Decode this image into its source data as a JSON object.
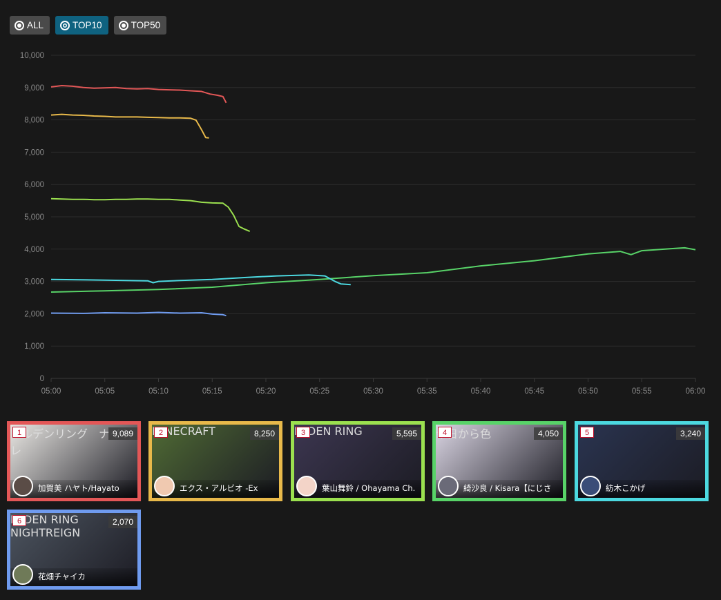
{
  "filters": [
    {
      "label": "ALL",
      "active": false
    },
    {
      "label": "TOP10",
      "active": true
    },
    {
      "label": "TOP50",
      "active": false
    }
  ],
  "chart_data": {
    "type": "line",
    "title": "",
    "xlabel": "",
    "ylabel": "",
    "ylim": [
      0,
      10000
    ],
    "yticks": [
      0,
      1000,
      2000,
      3000,
      4000,
      5000,
      6000,
      7000,
      8000,
      9000,
      10000
    ],
    "xticks": [
      "05:00",
      "05:05",
      "05:10",
      "05:15",
      "05:20",
      "05:25",
      "05:30",
      "05:35",
      "05:40",
      "05:45",
      "05:50",
      "05:55",
      "06:00"
    ],
    "xlim_minutes": [
      0,
      60
    ],
    "grid": true,
    "series": [
      {
        "color": "#e35757",
        "points": [
          [
            0,
            9020
          ],
          [
            1,
            9060
          ],
          [
            2,
            9040
          ],
          [
            3,
            9000
          ],
          [
            4,
            8980
          ],
          [
            5,
            8990
          ],
          [
            6,
            9000
          ],
          [
            7,
            8970
          ],
          [
            8,
            8960
          ],
          [
            9,
            8970
          ],
          [
            10,
            8940
          ],
          [
            11,
            8930
          ],
          [
            12,
            8920
          ],
          [
            13,
            8900
          ],
          [
            14,
            8880
          ],
          [
            14.8,
            8800
          ],
          [
            15.5,
            8760
          ],
          [
            16,
            8720
          ],
          [
            16.3,
            8530
          ]
        ]
      },
      {
        "color": "#e8b94a",
        "points": [
          [
            0,
            8150
          ],
          [
            1,
            8170
          ],
          [
            2,
            8150
          ],
          [
            3,
            8140
          ],
          [
            4,
            8120
          ],
          [
            5,
            8110
          ],
          [
            6,
            8090
          ],
          [
            7,
            8090
          ],
          [
            8,
            8090
          ],
          [
            9,
            8080
          ],
          [
            10,
            8070
          ],
          [
            11,
            8060
          ],
          [
            12,
            8060
          ],
          [
            13,
            8050
          ],
          [
            13.5,
            7990
          ],
          [
            14,
            7700
          ],
          [
            14.4,
            7450
          ],
          [
            14.7,
            7440
          ]
        ]
      },
      {
        "color": "#9be04f",
        "points": [
          [
            0,
            5560
          ],
          [
            1,
            5550
          ],
          [
            2,
            5540
          ],
          [
            3,
            5540
          ],
          [
            4,
            5530
          ],
          [
            5,
            5530
          ],
          [
            6,
            5540
          ],
          [
            7,
            5540
          ],
          [
            8,
            5550
          ],
          [
            9,
            5550
          ],
          [
            10,
            5540
          ],
          [
            11,
            5540
          ],
          [
            12,
            5520
          ],
          [
            13,
            5500
          ],
          [
            14,
            5450
          ],
          [
            15,
            5430
          ],
          [
            16,
            5420
          ],
          [
            16.5,
            5300
          ],
          [
            17,
            5050
          ],
          [
            17.5,
            4700
          ],
          [
            18,
            4620
          ],
          [
            18.5,
            4550
          ]
        ]
      },
      {
        "color": "#58d368",
        "points": [
          [
            0,
            2670
          ],
          [
            5,
            2710
          ],
          [
            10,
            2750
          ],
          [
            15,
            2820
          ],
          [
            20,
            2960
          ],
          [
            25,
            3060
          ],
          [
            30,
            3180
          ],
          [
            35,
            3270
          ],
          [
            40,
            3480
          ],
          [
            45,
            3640
          ],
          [
            50,
            3850
          ],
          [
            53,
            3930
          ],
          [
            54,
            3830
          ],
          [
            55,
            3950
          ],
          [
            58,
            4020
          ],
          [
            59,
            4040
          ],
          [
            60,
            3980
          ]
        ]
      },
      {
        "color": "#4cd9e0",
        "points": [
          [
            0,
            3060
          ],
          [
            5,
            3040
          ],
          [
            9,
            3020
          ],
          [
            9.5,
            2960
          ],
          [
            10,
            3000
          ],
          [
            12,
            3030
          ],
          [
            15,
            3060
          ],
          [
            18,
            3120
          ],
          [
            21,
            3170
          ],
          [
            24,
            3200
          ],
          [
            25.5,
            3170
          ],
          [
            26.5,
            2990
          ],
          [
            27,
            2920
          ],
          [
            27.9,
            2900
          ]
        ]
      },
      {
        "color": "#6f9bef",
        "points": [
          [
            0,
            2020
          ],
          [
            3,
            2010
          ],
          [
            5,
            2030
          ],
          [
            8,
            2020
          ],
          [
            10,
            2040
          ],
          [
            12,
            2020
          ],
          [
            14,
            2030
          ],
          [
            15,
            1990
          ],
          [
            16,
            1970
          ],
          [
            16.3,
            1940
          ]
        ]
      }
    ]
  },
  "cards": [
    {
      "rank": "1",
      "viewers": "9,089",
      "name": "加賀美 ハヤト/Hayato",
      "title_text": "エルデンリング　ナイトレ",
      "border": "#e35757",
      "thumb": "#e8e6e2",
      "avatar": "#5a4c46"
    },
    {
      "rank": "2",
      "viewers": "8,250",
      "name": "エクス・アルビオ -Ex",
      "title_text": "MINECRAFT",
      "border": "#e8b94a",
      "thumb": "#4f6a34",
      "avatar": "#f0c9b0"
    },
    {
      "rank": "3",
      "viewers": "5,595",
      "name": "葉山舞鈴 / Ohayama Ch.",
      "title_text": "ELDEN RING",
      "border": "#9be04f",
      "thumb": "#3c3650",
      "avatar": "#f3d4c8"
    },
    {
      "rank": "4",
      "viewers": "4,050",
      "name": "綺沙良 / Kisara【にじさ",
      "title_text": "今日から色",
      "border": "#58d368",
      "thumb": "#d9d4e2",
      "avatar": "#6a6a78"
    },
    {
      "rank": "5",
      "viewers": "3,240",
      "name": "紡木こかげ",
      "title_text": "",
      "border": "#4cd9e0",
      "thumb": "#2a3450",
      "avatar": "#3a4d78"
    },
    {
      "rank": "6",
      "viewers": "2,070",
      "name": "花畑チャイカ",
      "title_text": "ELDEN RING NIGHTREIGN",
      "border": "#6f9bef",
      "thumb": "#4d5560",
      "avatar": "#6f7a58"
    }
  ]
}
